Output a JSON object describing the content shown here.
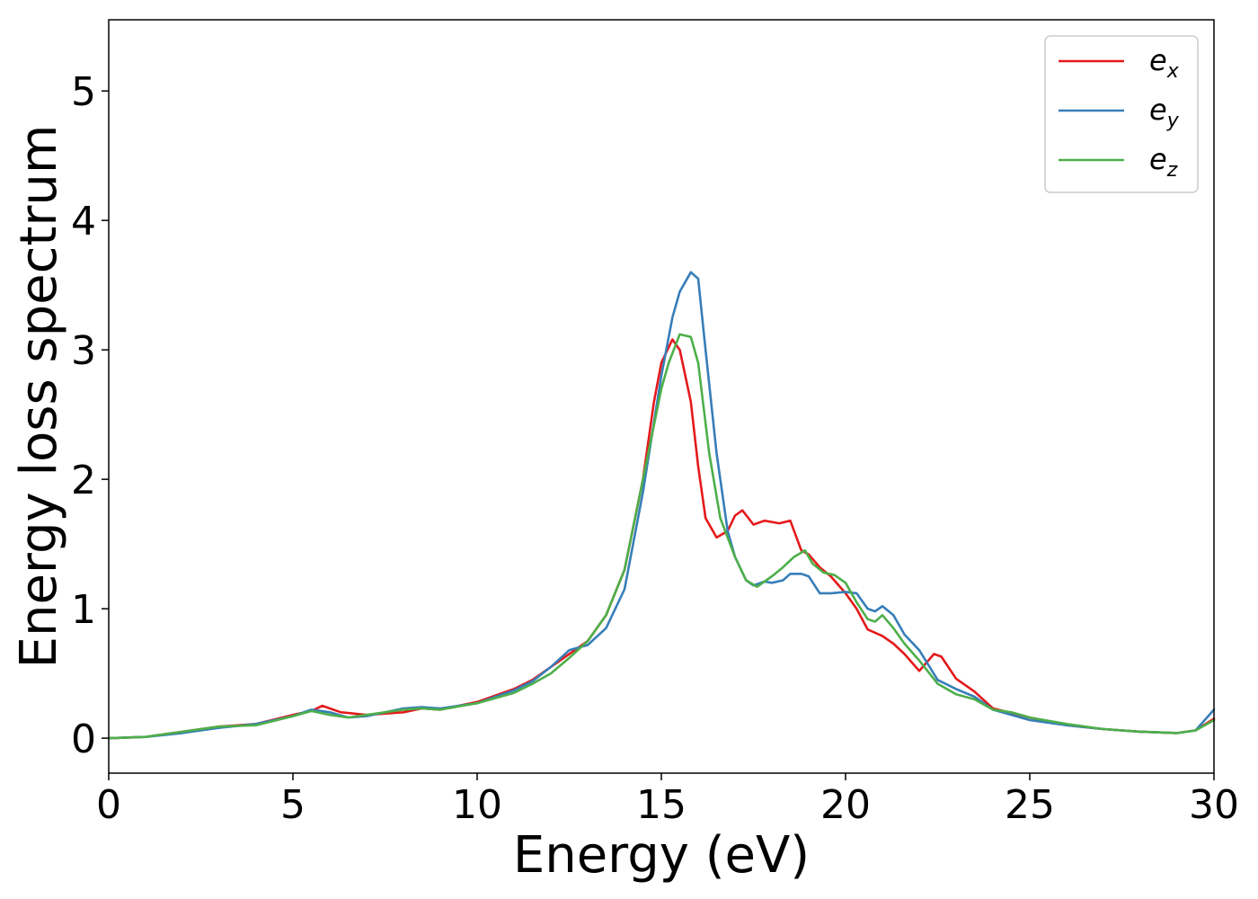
{
  "chart_data": {
    "type": "line",
    "title": "",
    "xlabel": "Energy (eV)",
    "ylabel": "Energy loss spectrum",
    "xlim": [
      0,
      30
    ],
    "ylim": [
      -0.27,
      5.55
    ],
    "xticks": [
      "0",
      "5",
      "10",
      "15",
      "20",
      "25",
      "30"
    ],
    "yticks": [
      "0",
      "1",
      "2",
      "3",
      "4",
      "5"
    ],
    "grid": false,
    "legend_position": "top-right",
    "series": [
      {
        "name": "e",
        "subscript": "x",
        "color": "#e41a1c",
        "x": [
          0,
          1,
          2,
          3,
          4,
          5,
          5.5,
          5.8,
          6.3,
          7,
          8,
          8.5,
          9,
          10,
          11,
          11.5,
          12,
          12.5,
          13,
          13.5,
          14,
          14.5,
          14.8,
          15,
          15.3,
          15.5,
          15.8,
          16,
          16.2,
          16.5,
          16.8,
          17,
          17.2,
          17.5,
          17.8,
          18.2,
          18.5,
          18.8,
          19,
          19.3,
          19.6,
          20,
          20.3,
          20.6,
          21,
          21.3,
          21.6,
          22,
          22.4,
          22.6,
          23,
          23.5,
          24,
          25,
          26,
          27,
          28,
          29,
          29.5,
          30
        ],
        "values": [
          0,
          0.01,
          0.05,
          0.09,
          0.11,
          0.18,
          0.21,
          0.25,
          0.2,
          0.18,
          0.2,
          0.23,
          0.22,
          0.28,
          0.38,
          0.45,
          0.55,
          0.65,
          0.75,
          0.95,
          1.3,
          2.0,
          2.6,
          2.9,
          3.08,
          3.0,
          2.6,
          2.1,
          1.7,
          1.55,
          1.6,
          1.72,
          1.76,
          1.65,
          1.68,
          1.66,
          1.68,
          1.45,
          1.42,
          1.32,
          1.25,
          1.12,
          1.0,
          0.84,
          0.79,
          0.73,
          0.65,
          0.52,
          0.65,
          0.63,
          0.46,
          0.36,
          0.23,
          0.16,
          0.1,
          0.07,
          0.05,
          0.04,
          0.06,
          0.15
        ]
      },
      {
        "name": "e",
        "subscript": "y",
        "color": "#377eb8",
        "x": [
          0,
          1,
          2,
          3,
          4,
          5,
          5.5,
          6,
          6.5,
          7,
          8,
          8.5,
          9,
          10,
          11,
          11.5,
          12,
          12.5,
          13,
          13.5,
          14,
          14.5,
          15,
          15.3,
          15.5,
          15.8,
          16,
          16.2,
          16.5,
          16.8,
          17,
          17.3,
          17.5,
          17.8,
          18,
          18.3,
          18.5,
          18.8,
          19,
          19.3,
          19.6,
          20,
          20.3,
          20.6,
          20.8,
          21,
          21.3,
          21.6,
          22,
          22.5,
          23,
          23.5,
          24,
          25,
          26,
          27,
          28,
          29,
          29.5,
          30
        ],
        "values": [
          0,
          0.01,
          0.04,
          0.08,
          0.11,
          0.17,
          0.22,
          0.2,
          0.16,
          0.17,
          0.23,
          0.24,
          0.23,
          0.27,
          0.37,
          0.44,
          0.55,
          0.68,
          0.72,
          0.85,
          1.15,
          1.9,
          2.8,
          3.25,
          3.45,
          3.6,
          3.55,
          3.0,
          2.2,
          1.6,
          1.4,
          1.22,
          1.18,
          1.21,
          1.2,
          1.22,
          1.27,
          1.27,
          1.25,
          1.12,
          1.12,
          1.13,
          1.12,
          1.0,
          0.98,
          1.02,
          0.95,
          0.8,
          0.68,
          0.45,
          0.38,
          0.32,
          0.22,
          0.14,
          0.1,
          0.07,
          0.05,
          0.04,
          0.06,
          0.22
        ]
      },
      {
        "name": "e",
        "subscript": "z",
        "color": "#4daf4a",
        "x": [
          0,
          1,
          2,
          3,
          4,
          5,
          5.5,
          6,
          6.5,
          7,
          8,
          8.5,
          9,
          10,
          11,
          11.5,
          12,
          12.5,
          13,
          13.5,
          14,
          14.5,
          15,
          15.2,
          15.5,
          15.8,
          16,
          16.3,
          16.6,
          17,
          17.3,
          17.6,
          18,
          18.3,
          18.6,
          18.9,
          19.1,
          19.4,
          19.7,
          20,
          20.3,
          20.6,
          20.8,
          21,
          21.3,
          21.6,
          22,
          22.5,
          23,
          23.5,
          24,
          24.5,
          25,
          26,
          27,
          28,
          29,
          29.5,
          30
        ],
        "values": [
          0,
          0.01,
          0.05,
          0.09,
          0.1,
          0.17,
          0.21,
          0.18,
          0.16,
          0.18,
          0.22,
          0.23,
          0.22,
          0.27,
          0.35,
          0.42,
          0.5,
          0.62,
          0.75,
          0.95,
          1.3,
          2.0,
          2.7,
          2.9,
          3.12,
          3.1,
          2.9,
          2.2,
          1.7,
          1.4,
          1.22,
          1.17,
          1.25,
          1.32,
          1.4,
          1.45,
          1.35,
          1.28,
          1.26,
          1.2,
          1.05,
          0.92,
          0.9,
          0.95,
          0.85,
          0.73,
          0.6,
          0.42,
          0.34,
          0.3,
          0.22,
          0.2,
          0.16,
          0.11,
          0.07,
          0.05,
          0.04,
          0.06,
          0.14
        ]
      }
    ]
  }
}
